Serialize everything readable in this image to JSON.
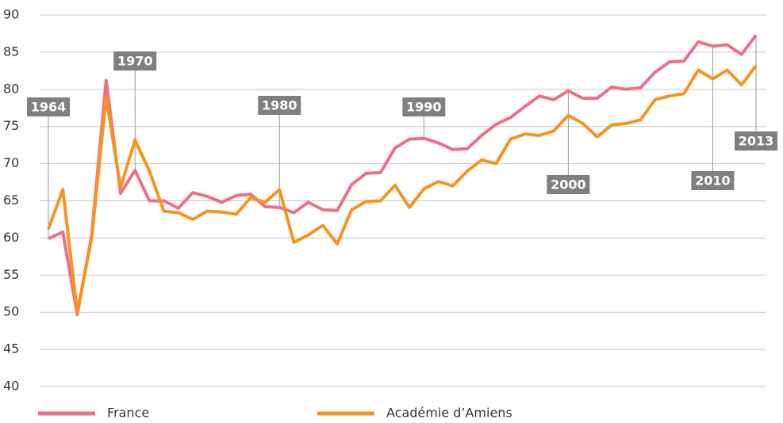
{
  "chart_data": {
    "type": "line",
    "x": [
      1964,
      1965,
      1966,
      1967,
      1968,
      1969,
      1970,
      1971,
      1972,
      1973,
      1974,
      1975,
      1976,
      1977,
      1978,
      1979,
      1980,
      1981,
      1982,
      1983,
      1984,
      1985,
      1986,
      1987,
      1988,
      1989,
      1990,
      1991,
      1992,
      1993,
      1994,
      1995,
      1996,
      1997,
      1998,
      1999,
      2000,
      2001,
      2002,
      2003,
      2004,
      2005,
      2006,
      2007,
      2008,
      2009,
      2010,
      2011,
      2012,
      2013
    ],
    "series": [
      {
        "name": "France",
        "color": "#ef6f8a",
        "values": [
          59.9,
          60.8,
          49.7,
          60.4,
          81.2,
          66.0,
          69.1,
          65.0,
          65.0,
          64.0,
          66.1,
          65.6,
          64.8,
          65.7,
          65.9,
          64.2,
          64.1,
          63.4,
          64.8,
          63.8,
          63.7,
          67.2,
          68.7,
          68.8,
          72.1,
          73.3,
          73.4,
          72.8,
          71.9,
          72.0,
          73.8,
          75.3,
          76.2,
          77.7,
          79.1,
          78.6,
          79.8,
          78.8,
          78.8,
          80.3,
          80.0,
          80.2,
          82.3,
          83.7,
          83.8,
          86.4,
          85.8,
          86.0,
          84.7,
          87.3
        ]
      },
      {
        "name": "Académie d’Amiens",
        "color": "#f5951f",
        "values": [
          61.2,
          66.5,
          50.0,
          60.0,
          79.0,
          66.8,
          73.2,
          69.0,
          63.6,
          63.4,
          62.5,
          63.6,
          63.5,
          63.2,
          65.4,
          64.8,
          66.5,
          59.4,
          60.4,
          61.7,
          59.2,
          63.8,
          64.9,
          65.0,
          67.1,
          64.1,
          66.6,
          67.6,
          67.0,
          69.0,
          70.5,
          70.0,
          73.3,
          74.0,
          73.8,
          74.4,
          76.5,
          75.4,
          73.6,
          75.2,
          75.4,
          75.9,
          78.6,
          79.1,
          79.4,
          82.6,
          81.4,
          82.6,
          80.6,
          83.2
        ]
      }
    ],
    "xlim": [
      1964,
      2013
    ],
    "xticks": [
      1964,
      1970,
      1980,
      1990,
      2000,
      2010,
      2013
    ],
    "ylim": [
      40,
      90
    ],
    "yticks": [
      40,
      45,
      50,
      55,
      60,
      65,
      70,
      75,
      80,
      85,
      90
    ],
    "grid": true,
    "legend": "bottom"
  }
}
